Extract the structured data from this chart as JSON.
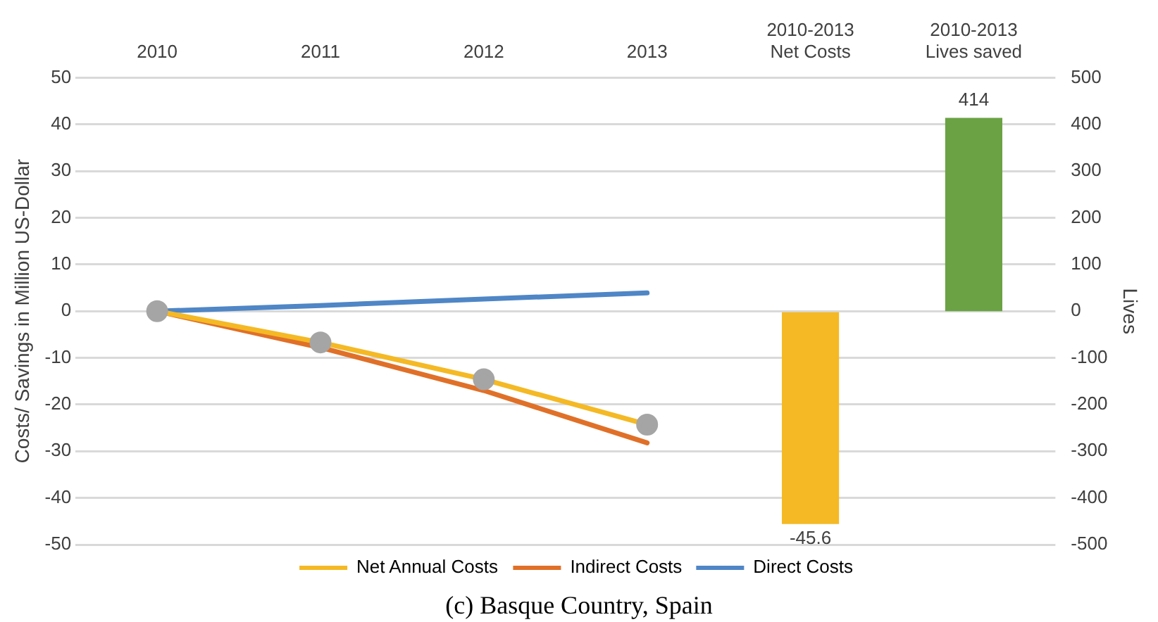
{
  "chart_data": {
    "type": "line",
    "ylabel": "Costs/ Savings in Million US-Dollar",
    "y2label": "Lives",
    "categories": [
      "2010",
      "2011",
      "2012",
      "2013",
      "2010-2013\nNet Costs",
      "2010-2013\nLives saved"
    ],
    "series": [
      {
        "name": "Net Annual Costs",
        "color": "#f4b924",
        "marker": "circle",
        "values": [
          0,
          -6.7,
          -14.6,
          -24.3,
          null,
          null
        ]
      },
      {
        "name": "Indirect Costs",
        "color": "#e07028",
        "marker": "none",
        "values": [
          0,
          -7.8,
          -17,
          -28.2,
          null,
          null
        ]
      },
      {
        "name": "Direct Costs",
        "color": "#4f86c6",
        "marker": "none",
        "values": [
          0,
          1.2,
          2.6,
          3.9,
          null,
          null
        ]
      },
      {
        "type": "bar",
        "color": "#f4b924",
        "values": [
          null,
          null,
          null,
          null,
          -45.6,
          null
        ],
        "value_labels": [
          null,
          null,
          null,
          null,
          "-45.6",
          null
        ]
      },
      {
        "type": "bar",
        "axis": "y2",
        "color": "#6aa244",
        "values": [
          null,
          null,
          null,
          null,
          null,
          414
        ],
        "value_labels": [
          null,
          null,
          null,
          null,
          null,
          "414"
        ]
      }
    ],
    "ylim": [
      -50,
      50
    ],
    "yticks": [
      -50,
      -40,
      -30,
      -20,
      -10,
      0,
      10,
      20,
      30,
      40,
      50
    ],
    "y2lim": [
      -500,
      500
    ],
    "y2ticks": [
      -500,
      -400,
      -300,
      -200,
      -100,
      0,
      100,
      200,
      300,
      400,
      500
    ],
    "grid": "y",
    "legend": "bottom",
    "annotations": [
      "(c) Basque Country, Spain"
    ]
  }
}
